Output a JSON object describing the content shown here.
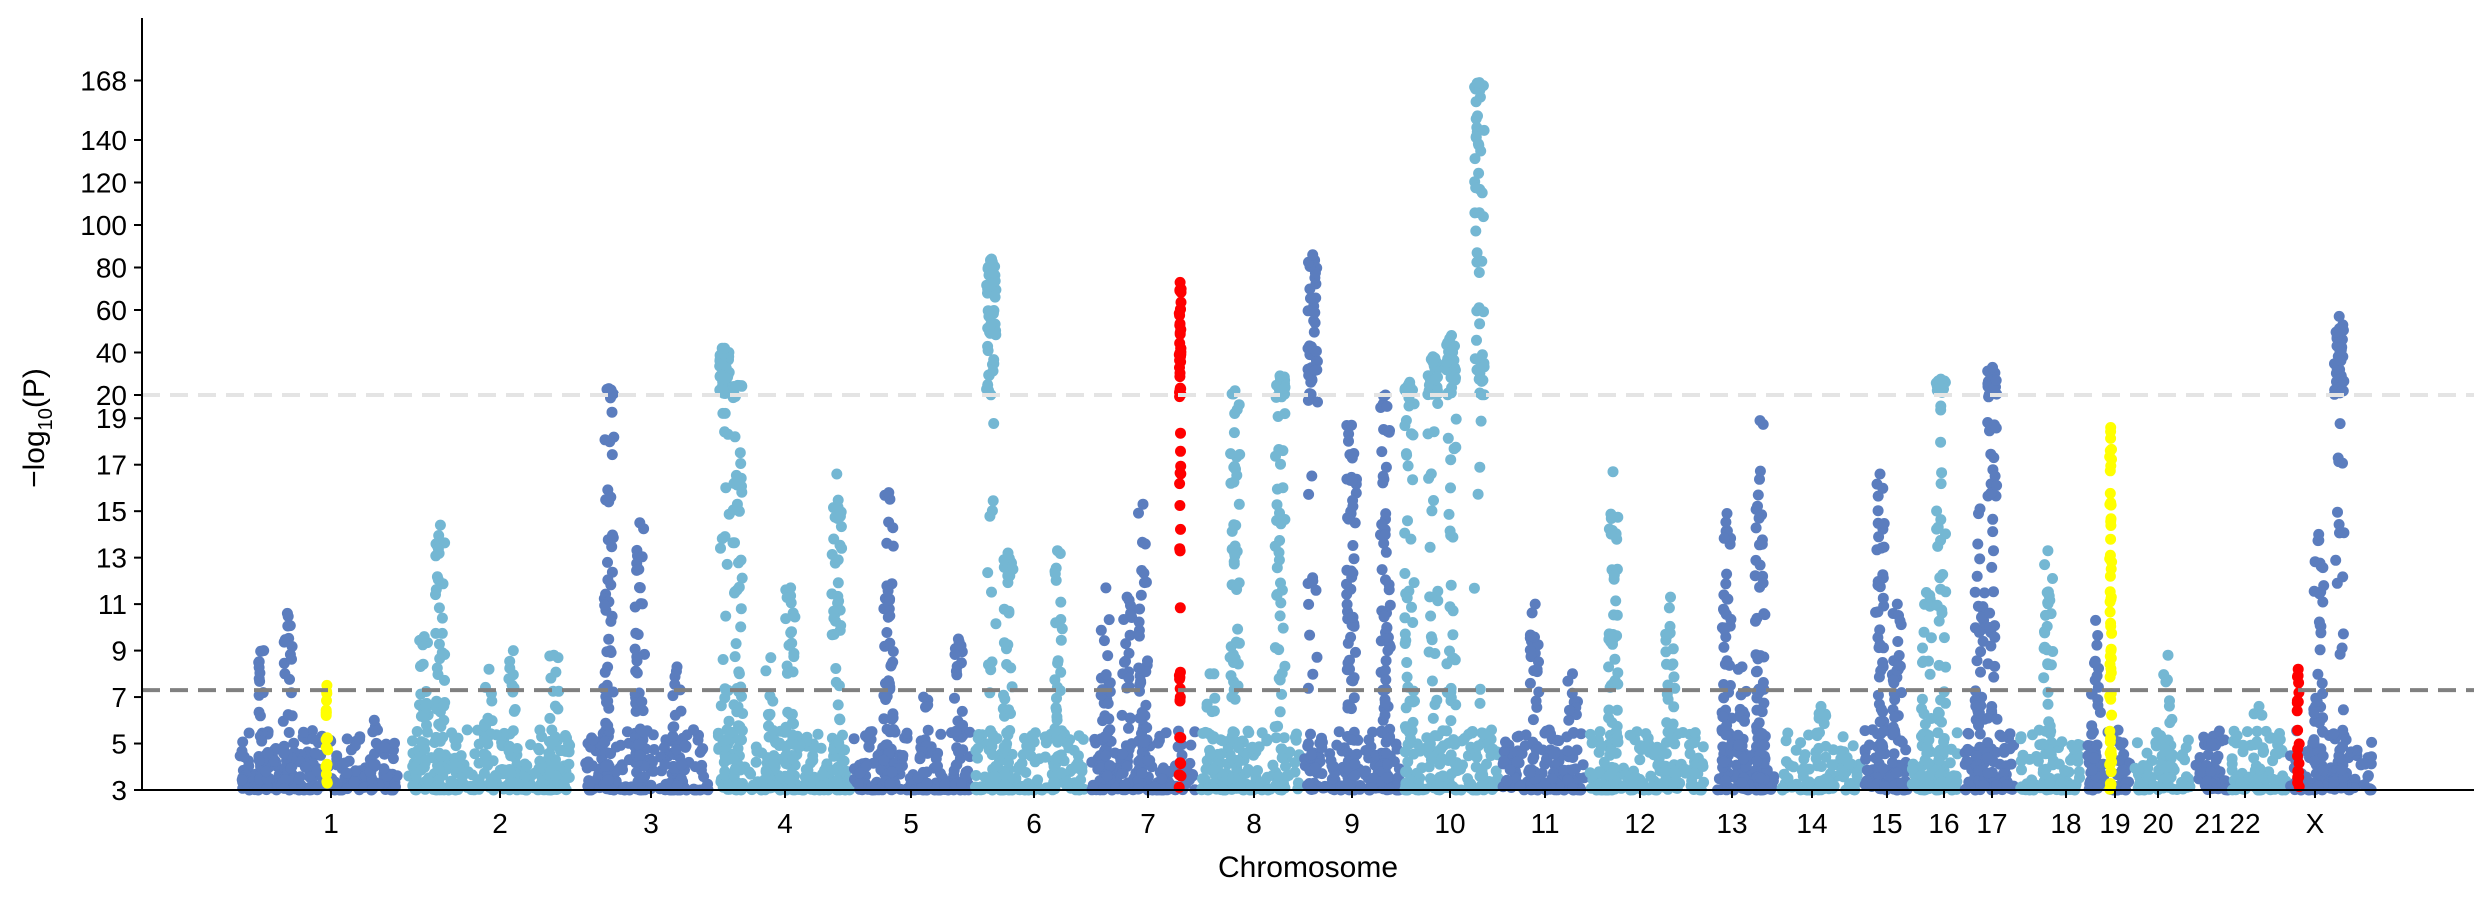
{
  "chart_data": {
    "type": "scatter",
    "subtype": "manhattan",
    "title": "",
    "xlabel": "Chromosome",
    "ylabel_main": "−log",
    "ylabel_sub": "10",
    "ylabel_tail": "(P)",
    "y_axis_lower": {
      "range": [
        3,
        20
      ],
      "ticks": [
        "3",
        "5",
        "7",
        "9",
        "11",
        "13",
        "15",
        "17",
        "19"
      ],
      "tick_values": [
        3,
        5,
        7,
        9,
        11,
        13,
        15,
        17,
        19
      ]
    },
    "y_axis_upper": {
      "range": [
        20,
        180
      ],
      "ticks": [
        "20",
        "40",
        "60",
        "80",
        "100",
        "120",
        "140",
        "168"
      ],
      "tick_values": [
        20,
        40,
        60,
        80,
        100,
        120,
        140,
        168
      ]
    },
    "thresholds": [
      {
        "value": 7.3,
        "color": "#808080",
        "style": "dashed"
      },
      {
        "value": 20,
        "color": "#e4e4e4",
        "style": "dashed"
      }
    ],
    "colors": {
      "dark": "#5b7dbe",
      "light": "#74b7d3",
      "highlight_red": "#ff0000",
      "highlight_yellow": "#ffff00"
    },
    "chromosomes": [
      {
        "label": "1",
        "peaks": [
          {
            "offset": 0.15,
            "max": 9
          },
          {
            "offset": 0.3,
            "max": 10.6
          },
          {
            "offset": 0.55,
            "max": 7.5,
            "highlight": "yellow"
          },
          {
            "offset": 0.85,
            "max": 6
          }
        ]
      },
      {
        "label": "2",
        "peaks": [
          {
            "offset": 0.1,
            "max": 9.6
          },
          {
            "offset": 0.2,
            "max": 14.4
          },
          {
            "offset": 0.5,
            "max": 8.2
          },
          {
            "offset": 0.65,
            "max": 9
          },
          {
            "offset": 0.9,
            "max": 8.8
          }
        ]
      },
      {
        "label": "3",
        "peaks": [
          {
            "offset": 0.2,
            "max": 23
          },
          {
            "offset": 0.45,
            "max": 14.5
          },
          {
            "offset": 0.75,
            "max": 8.3
          }
        ]
      },
      {
        "label": "4",
        "peaks": [
          {
            "offset": 0.05,
            "max": 42
          },
          {
            "offset": 0.15,
            "max": 24.5
          },
          {
            "offset": 0.4,
            "max": 8.7
          },
          {
            "offset": 0.55,
            "max": 11.7
          },
          {
            "offset": 0.9,
            "max": 16.6
          }
        ]
      },
      {
        "label": "5",
        "peaks": [
          {
            "offset": 0.3,
            "max": 15.8
          },
          {
            "offset": 0.6,
            "max": 7
          },
          {
            "offset": 0.9,
            "max": 9.5
          }
        ]
      },
      {
        "label": "6",
        "peaks": [
          {
            "offset": 0.15,
            "max": 84
          },
          {
            "offset": 0.3,
            "max": 13.2
          },
          {
            "offset": 0.75,
            "max": 13.3
          }
        ]
      },
      {
        "label": "7",
        "peaks": [
          {
            "offset": 0.15,
            "max": 11.7
          },
          {
            "offset": 0.35,
            "max": 11.3
          },
          {
            "offset": 0.5,
            "max": 15.3
          },
          {
            "offset": 0.85,
            "max": 73,
            "highlight": "red"
          }
        ]
      },
      {
        "label": "8",
        "peaks": [
          {
            "offset": 0.1,
            "max": 8
          },
          {
            "offset": 0.35,
            "max": 22
          },
          {
            "offset": 0.8,
            "max": 29
          }
        ]
      },
      {
        "label": "9",
        "peaks": [
          {
            "offset": 0.1,
            "max": 86
          },
          {
            "offset": 0.5,
            "max": 18.7
          },
          {
            "offset": 0.85,
            "max": 20
          }
        ]
      },
      {
        "label": "10",
        "peaks": [
          {
            "offset": 0.05,
            "max": 26
          },
          {
            "offset": 0.3,
            "max": 38
          },
          {
            "offset": 0.5,
            "max": 48
          },
          {
            "offset": 0.8,
            "max": 167
          }
        ]
      },
      {
        "label": "11",
        "peaks": [
          {
            "offset": 0.4,
            "max": 11
          },
          {
            "offset": 0.85,
            "max": 8
          }
        ]
      },
      {
        "label": "12",
        "peaks": [
          {
            "offset": 0.2,
            "max": 16.7
          },
          {
            "offset": 0.7,
            "max": 11.3
          }
        ]
      },
      {
        "label": "13",
        "peaks": [
          {
            "offset": 0.2,
            "max": 14.9
          },
          {
            "offset": 0.45,
            "max": 8.3
          },
          {
            "offset": 0.75,
            "max": 18.9
          }
        ]
      },
      {
        "label": "14",
        "peaks": [
          {
            "offset": 0.5,
            "max": 6.6
          }
        ]
      },
      {
        "label": "15",
        "peaks": [
          {
            "offset": 0.35,
            "max": 16.6
          },
          {
            "offset": 0.75,
            "max": 11
          }
        ]
      },
      {
        "label": "16",
        "peaks": [
          {
            "offset": 0.3,
            "max": 11.5
          },
          {
            "offset": 0.6,
            "max": 27.5
          }
        ]
      },
      {
        "label": "17",
        "peaks": [
          {
            "offset": 0.3,
            "max": 15.1
          },
          {
            "offset": 0.55,
            "max": 33
          }
        ]
      },
      {
        "label": "18",
        "peaks": [
          {
            "offset": 0.45,
            "max": 13.3
          }
        ]
      },
      {
        "label": "19",
        "peaks": [
          {
            "offset": 0.2,
            "max": 10.3
          },
          {
            "offset": 0.55,
            "max": 18.6,
            "highlight": "yellow"
          }
        ]
      },
      {
        "label": "20",
        "peaks": [
          {
            "offset": 0.6,
            "max": 8.8
          }
        ]
      },
      {
        "label": "21",
        "peaks": [
          {
            "offset": 0.5,
            "max": 5
          }
        ]
      },
      {
        "label": "22",
        "peaks": [
          {
            "offset": 0.5,
            "max": 6.6
          }
        ]
      },
      {
        "label": "X",
        "peaks": [
          {
            "offset": 0.1,
            "max": 8.2,
            "highlight": "red"
          },
          {
            "offset": 0.35,
            "max": 14
          },
          {
            "offset": 0.6,
            "max": 57
          }
        ]
      }
    ]
  }
}
